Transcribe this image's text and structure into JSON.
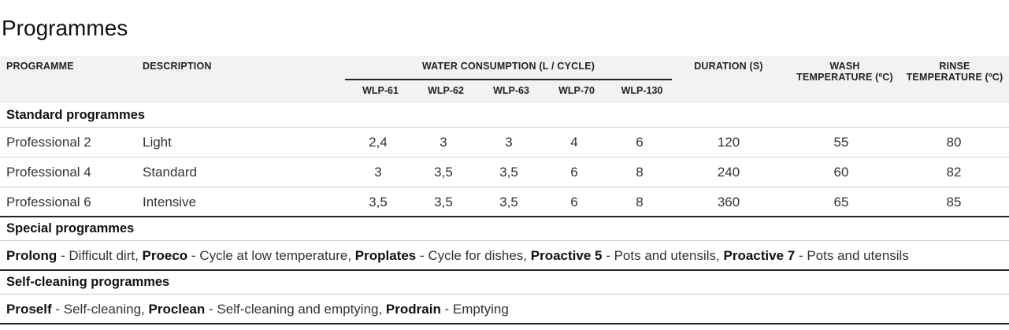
{
  "title": "Programmes",
  "headers": {
    "programme": "PROGRAMME",
    "description": "DESCRIPTION",
    "water": "WATER CONSUMPTION (L / CYCLE)",
    "models": [
      "WLP-61",
      "WLP-62",
      "WLP-63",
      "WLP-70",
      "WLP-130"
    ],
    "duration": "DURATION (S)",
    "wash_line1": "WASH",
    "wash_line2": "TEMPERATURE (ºC)",
    "rinse_line1": "RINSE",
    "rinse_line2": "TEMPERATURE (ºC)"
  },
  "standard": {
    "heading": "Standard programmes",
    "rows": [
      {
        "programme": "Professional 2",
        "description": "Light",
        "water": [
          "2,4",
          "3",
          "3",
          "4",
          "6"
        ],
        "duration": "120",
        "wash": "55",
        "rinse": "80"
      },
      {
        "programme": "Professional 4",
        "description": "Standard",
        "water": [
          "3",
          "3,5",
          "3,5",
          "6",
          "8"
        ],
        "duration": "240",
        "wash": "60",
        "rinse": "82"
      },
      {
        "programme": "Professional 6",
        "description": "Intensive",
        "water": [
          "3,5",
          "3,5",
          "3,5",
          "6",
          "8"
        ],
        "duration": "360",
        "wash": "65",
        "rinse": "85"
      }
    ]
  },
  "special": {
    "heading": "Special programmes",
    "items": [
      {
        "name": "Prolong",
        "desc": " - Difficult dirt, "
      },
      {
        "name": "Proeco",
        "desc": " - Cycle at low temperature, "
      },
      {
        "name": "Proplates",
        "desc": " - Cycle for dishes, "
      },
      {
        "name": "Proactive 5",
        "desc": " - Pots and utensils, "
      },
      {
        "name": "Proactive 7",
        "desc": " - Pots and utensils"
      }
    ]
  },
  "selfcleaning": {
    "heading": "Self-cleaning programmes",
    "items": [
      {
        "name": "Proself",
        "desc": " - Self-cleaning, "
      },
      {
        "name": "Proclean",
        "desc": " - Self-cleaning and emptying, "
      },
      {
        "name": "Prodrain",
        "desc": " - Emptying"
      }
    ]
  }
}
